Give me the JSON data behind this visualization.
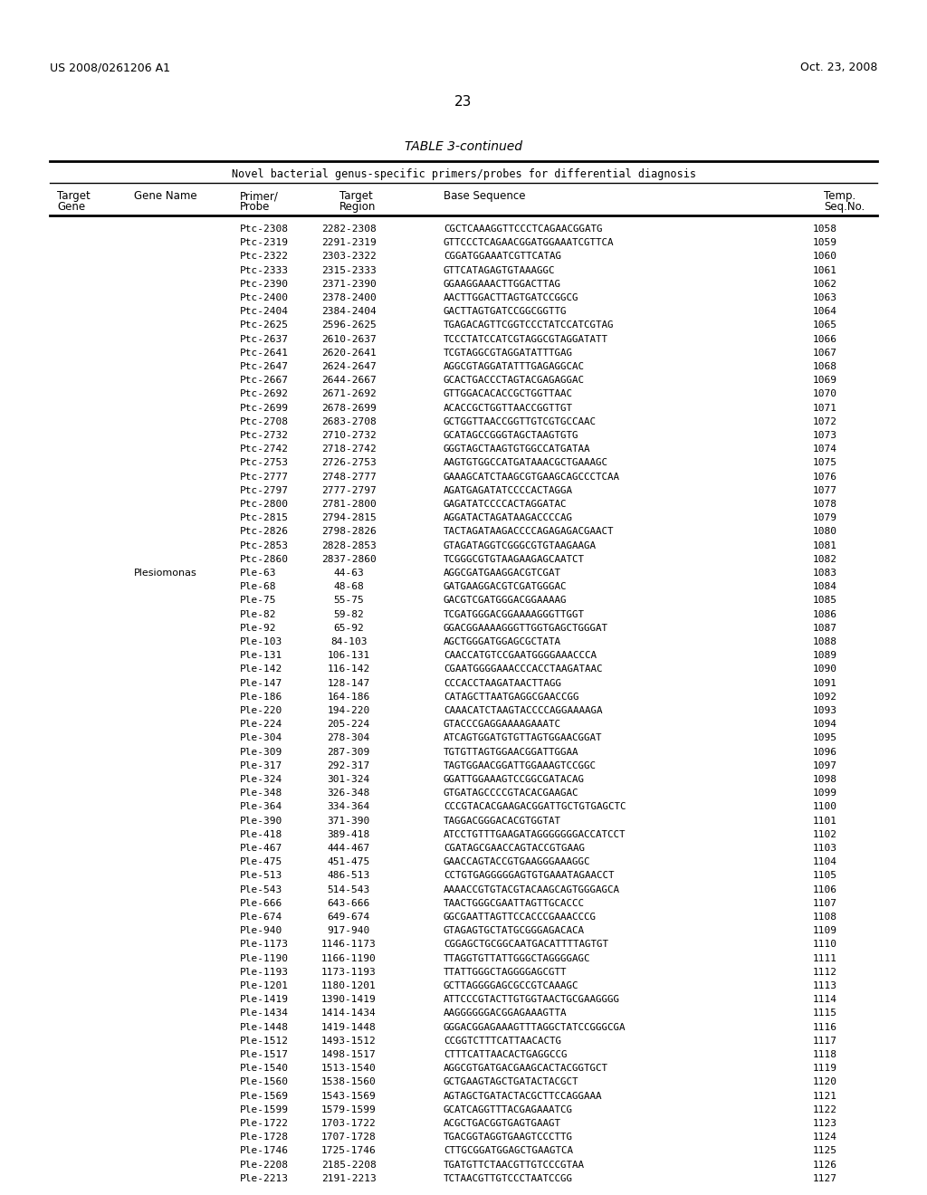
{
  "header_left": "US 2008/0261206 A1",
  "header_right": "Oct. 23, 2008",
  "page_number": "23",
  "table_title": "TABLE 3-continued",
  "table_subtitle": "Novel bacterial genus-specific primers/probes for differential diagnosis",
  "col_headers": [
    "Target\nGene",
    "Gene Name",
    "Primer/\nProbe",
    "Target\nRegion",
    "Base Sequence",
    "Temp.\nSeq.No."
  ],
  "rows": [
    [
      "",
      "",
      "Ptc-2308",
      "2282-2308",
      "CGCTCAAAGGTTCCCTCAGAACGGATG",
      "1058"
    ],
    [
      "",
      "",
      "Ptc-2319",
      "2291-2319",
      "GTTCCCTCAGAACGGATGGAAATCGTTCA",
      "1059"
    ],
    [
      "",
      "",
      "Ptc-2322",
      "2303-2322",
      "CGGATGGAAATCGTTCATAG",
      "1060"
    ],
    [
      "",
      "",
      "Ptc-2333",
      "2315-2333",
      "GTTCATAGAGTGTAAAGGC",
      "1061"
    ],
    [
      "",
      "",
      "Ptc-2390",
      "2371-2390",
      "GGAAGGAAACTTGGACTTAG",
      "1062"
    ],
    [
      "",
      "",
      "Ptc-2400",
      "2378-2400",
      "AACTTGGACTTAGTGATCCGGCG",
      "1063"
    ],
    [
      "",
      "",
      "Ptc-2404",
      "2384-2404",
      "GACTTAGTGATCCGGCGGTTG",
      "1064"
    ],
    [
      "",
      "",
      "Ptc-2625",
      "2596-2625",
      "TGAGACAGTTCGGTCCCTATCCATCGTAG",
      "1065"
    ],
    [
      "",
      "",
      "Ptc-2637",
      "2610-2637",
      "TCCCTATCCATCGTAGGCGTAGGATATT",
      "1066"
    ],
    [
      "",
      "",
      "Ptc-2641",
      "2620-2641",
      "TCGTAGGCGTAGGATATTTGAG",
      "1067"
    ],
    [
      "",
      "",
      "Ptc-2647",
      "2624-2647",
      "AGGCGTAGGATATTTGAGAGGCAC",
      "1068"
    ],
    [
      "",
      "",
      "Ptc-2667",
      "2644-2667",
      "GCACTGACCCTAGTACGAGAGGAC",
      "1069"
    ],
    [
      "",
      "",
      "Ptc-2692",
      "2671-2692",
      "GTTGGACACACCGCTGGTTAAC",
      "1070"
    ],
    [
      "",
      "",
      "Ptc-2699",
      "2678-2699",
      "ACACCGCTGGTTAACCGGTTGT",
      "1071"
    ],
    [
      "",
      "",
      "Ptc-2708",
      "2683-2708",
      "GCTGGTTAACCGGTTGTCGTGCCAAC",
      "1072"
    ],
    [
      "",
      "",
      "Ptc-2732",
      "2710-2732",
      "GCATAGCCGGGTAGCTAAGTGTG",
      "1073"
    ],
    [
      "",
      "",
      "Ptc-2742",
      "2718-2742",
      "GGGTAGCTAAGTGTGGCCATGATAA",
      "1074"
    ],
    [
      "",
      "",
      "Ptc-2753",
      "2726-2753",
      "AAGTGTGGCCATGATAAACGCTGAAAGC",
      "1075"
    ],
    [
      "",
      "",
      "Ptc-2777",
      "2748-2777",
      "GAAAGCATCTAAGCGTGAAGCAGCCCTCAA",
      "1076"
    ],
    [
      "",
      "",
      "Ptc-2797",
      "2777-2797",
      "AGATGAGATATCCCCACTAGGA",
      "1077"
    ],
    [
      "",
      "",
      "Ptc-2800",
      "2781-2800",
      "GAGATATCCCCACTAGGATAC",
      "1078"
    ],
    [
      "",
      "",
      "Ptc-2815",
      "2794-2815",
      "AGGATACTAGATAAGACCCCAG",
      "1079"
    ],
    [
      "",
      "",
      "Ptc-2826",
      "2798-2826",
      "TACTAGATAAGACCCCAGAGAGACGAACT",
      "1080"
    ],
    [
      "",
      "",
      "Ptc-2853",
      "2828-2853",
      "GTAGATAGGTCGGGCGTGTAAGAAGA",
      "1081"
    ],
    [
      "",
      "",
      "Ptc-2860",
      "2837-2860",
      "TCGGGCGTGTAAGAAGAGCAATCT",
      "1082"
    ],
    [
      "",
      "Plesiomonas",
      "Ple-63",
      "44-63",
      "AGGCGATGAAGGACGTCGAT",
      "1083"
    ],
    [
      "",
      "",
      "Ple-68",
      "48-68",
      "GATGAAGGACGTCGATGGGAC",
      "1084"
    ],
    [
      "",
      "",
      "Ple-75",
      "55-75",
      "GACGTCGATGGGACGGAAAAG",
      "1085"
    ],
    [
      "",
      "",
      "Ple-82",
      "59-82",
      "TCGATGGGACGGAAAAGGGTTGGT",
      "1086"
    ],
    [
      "",
      "",
      "Ple-92",
      "65-92",
      "GGACGGAAAAGGGTTGGTGAGCTGGGAT",
      "1087"
    ],
    [
      "",
      "",
      "Ple-103",
      "84-103",
      "AGCTGGGATGGAGCGCTATA",
      "1088"
    ],
    [
      "",
      "",
      "Ple-131",
      "106-131",
      "CAACCATGTCCGAATGGGGAAACCCA",
      "1089"
    ],
    [
      "",
      "",
      "Ple-142",
      "116-142",
      "CGAATGGGGAAACCCACCTAAGATAAC",
      "1090"
    ],
    [
      "",
      "",
      "Ple-147",
      "128-147",
      "CCCACCTAAGATAACTTAGG",
      "1091"
    ],
    [
      "",
      "",
      "Ple-186",
      "164-186",
      "CATAGCTTAATGAGGCGAACCGG",
      "1092"
    ],
    [
      "",
      "",
      "Ple-220",
      "194-220",
      "CAAACATCTAAGTACCCCAGGAAAAGA",
      "1093"
    ],
    [
      "",
      "",
      "Ple-224",
      "205-224",
      "GTACCCGAGGAAAAGAAATC",
      "1094"
    ],
    [
      "",
      "",
      "Ple-304",
      "278-304",
      "ATCAGTGGATGTGTTAGTGGAACGGAT",
      "1095"
    ],
    [
      "",
      "",
      "Ple-309",
      "287-309",
      "TGTGTTAGTGGAACGGATTGGAA",
      "1096"
    ],
    [
      "",
      "",
      "Ple-317",
      "292-317",
      "TAGTGGAACGGATTGGAAAGTCCGGC",
      "1097"
    ],
    [
      "",
      "",
      "Ple-324",
      "301-324",
      "GGATTGGAAAGTCCGGCGATACAG",
      "1098"
    ],
    [
      "",
      "",
      "Ple-348",
      "326-348",
      "GTGATAGCCCCGTACACGAAGAC",
      "1099"
    ],
    [
      "",
      "",
      "Ple-364",
      "334-364",
      "CCCGTACACGAAGACGGATTGCTGTGAGCTC",
      "1100"
    ],
    [
      "",
      "",
      "Ple-390",
      "371-390",
      "TAGGACGGGACACGTGGTAT",
      "1101"
    ],
    [
      "",
      "",
      "Ple-418",
      "389-418",
      "ATCCTGTTTGAAGATAGGGGGGGACCATCCT",
      "1102"
    ],
    [
      "",
      "",
      "Ple-467",
      "444-467",
      "CGATAGCGAACCAGTACCGTGAAG",
      "1103"
    ],
    [
      "",
      "",
      "Ple-475",
      "451-475",
      "GAACCAGTACCGTGAAGGGAAAGGC",
      "1104"
    ],
    [
      "",
      "",
      "Ple-513",
      "486-513",
      "CCTGTGAGGGGGAGTGTGAAATAGAACCT",
      "1105"
    ],
    [
      "",
      "",
      "Ple-543",
      "514-543",
      "AAAACCGTGTACGTACAAGCAGTGGGAGCA",
      "1106"
    ],
    [
      "",
      "",
      "Ple-666",
      "643-666",
      "TAACTGGGCGAATTAGTTGCACCC",
      "1107"
    ],
    [
      "",
      "",
      "Ple-674",
      "649-674",
      "GGCGAATTAGTTCCACCCGAAACCCG",
      "1108"
    ],
    [
      "",
      "",
      "Ple-940",
      "917-940",
      "GTAGAGTGCTATGCGGGAGACACA",
      "1109"
    ],
    [
      "",
      "",
      "Ple-1173",
      "1146-1173",
      "CGGAGCTGCGGCAATGACATTTTAGTGT",
      "1110"
    ],
    [
      "",
      "",
      "Ple-1190",
      "1166-1190",
      "TTAGGTGTTATTGGGCTAGGGGAGC",
      "1111"
    ],
    [
      "",
      "",
      "Ple-1193",
      "1173-1193",
      "TTATTGGGCTAGGGGAGCGTT",
      "1112"
    ],
    [
      "",
      "",
      "Ple-1201",
      "1180-1201",
      "GCTTAGGGGAGCGCCGTCAAAGC",
      "1113"
    ],
    [
      "",
      "",
      "Ple-1419",
      "1390-1419",
      "ATTCCCGTACTTGTGGTAACTGCGAAGGGG",
      "1114"
    ],
    [
      "",
      "",
      "Ple-1434",
      "1414-1434",
      "AAGGGGGGACGGAGAAAGTTA",
      "1115"
    ],
    [
      "",
      "",
      "Ple-1448",
      "1419-1448",
      "GGGACGGAGAAAGTTTAGGCTATCCGGGCGA",
      "1116"
    ],
    [
      "",
      "",
      "Ple-1512",
      "1493-1512",
      "CCGGTCTTTCATTAACACTG",
      "1117"
    ],
    [
      "",
      "",
      "Ple-1517",
      "1498-1517",
      "CTTTCATTAACACTGAGGCCG",
      "1118"
    ],
    [
      "",
      "",
      "Ple-1540",
      "1513-1540",
      "AGGCGTGATGACGAAGCACTACGGTGCT",
      "1119"
    ],
    [
      "",
      "",
      "Ple-1560",
      "1538-1560",
      "GCTGAAGTAGCTGATACTACGCT",
      "1120"
    ],
    [
      "",
      "",
      "Ple-1569",
      "1543-1569",
      "AGTAGCTGATACTACGCTTCCAGGAAA",
      "1121"
    ],
    [
      "",
      "",
      "Ple-1599",
      "1579-1599",
      "GCATCAGGTTTACGAGAAATCG",
      "1122"
    ],
    [
      "",
      "",
      "Ple-1722",
      "1703-1722",
      "ACGCTGACGGTGAGTGAAGT",
      "1123"
    ],
    [
      "",
      "",
      "Ple-1728",
      "1707-1728",
      "TGACGGTAGGTGAAGTCCCTTG",
      "1124"
    ],
    [
      "",
      "",
      "Ple-1746",
      "1725-1746",
      "CTTGCGGATGGAGCTGAAGTCA",
      "1125"
    ],
    [
      "",
      "",
      "Ple-2208",
      "2185-2208",
      "TGATGTTCTAACGTTGTCCCGTAA",
      "1126"
    ],
    [
      "",
      "",
      "Ple-2213",
      "2191-2213",
      "TCTAACGTTGTCCCTAATCCGG",
      "1127"
    ]
  ],
  "bg_color": "#ffffff",
  "text_color": "#000000",
  "font_family": "DejaVu Sans Mono"
}
